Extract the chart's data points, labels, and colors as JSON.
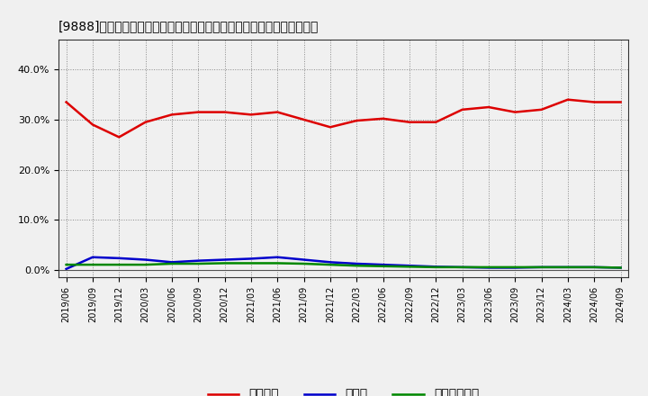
{
  "title": "[9888]　自己資本、のれん、繰延税金資産の総資産に対する比率の推移",
  "x_labels": [
    "2019/06",
    "2019/09",
    "2019/12",
    "2020/03",
    "2020/06",
    "2020/09",
    "2020/12",
    "2021/03",
    "2021/06",
    "2021/09",
    "2021/12",
    "2022/03",
    "2022/06",
    "2022/09",
    "2022/12",
    "2023/03",
    "2023/06",
    "2023/09",
    "2023/12",
    "2024/03",
    "2024/06",
    "2024/09"
  ],
  "equity": [
    33.5,
    29.0,
    26.5,
    29.5,
    31.0,
    31.5,
    31.5,
    31.0,
    31.5,
    30.0,
    28.5,
    29.8,
    30.2,
    29.5,
    29.5,
    32.0,
    32.5,
    31.5,
    32.0,
    34.0,
    33.5,
    33.5
  ],
  "noren": [
    0.15,
    2.5,
    2.3,
    2.0,
    1.5,
    1.8,
    2.0,
    2.2,
    2.5,
    2.0,
    1.5,
    1.2,
    1.0,
    0.8,
    0.6,
    0.5,
    0.4,
    0.4,
    0.5,
    0.5,
    0.5,
    0.4
  ],
  "deferred_tax": [
    1.0,
    1.0,
    1.0,
    1.0,
    1.2,
    1.2,
    1.3,
    1.3,
    1.3,
    1.2,
    1.0,
    0.8,
    0.7,
    0.6,
    0.5,
    0.5,
    0.5,
    0.5,
    0.5,
    0.5,
    0.5,
    0.4
  ],
  "equity_color": "#dd0000",
  "noren_color": "#0000cc",
  "deferred_tax_color": "#008800",
  "bg_color": "#f0f0f0",
  "plot_bg_color": "#f0f0f0",
  "grid_color": "#888888",
  "legend_equity": "自己資本",
  "legend_noren": "のれん",
  "legend_deferred": "繰延税金資産",
  "ylim_min": -1.5,
  "ylim_max": 46.0,
  "yticks": [
    0.0,
    10.0,
    20.0,
    30.0,
    40.0
  ]
}
